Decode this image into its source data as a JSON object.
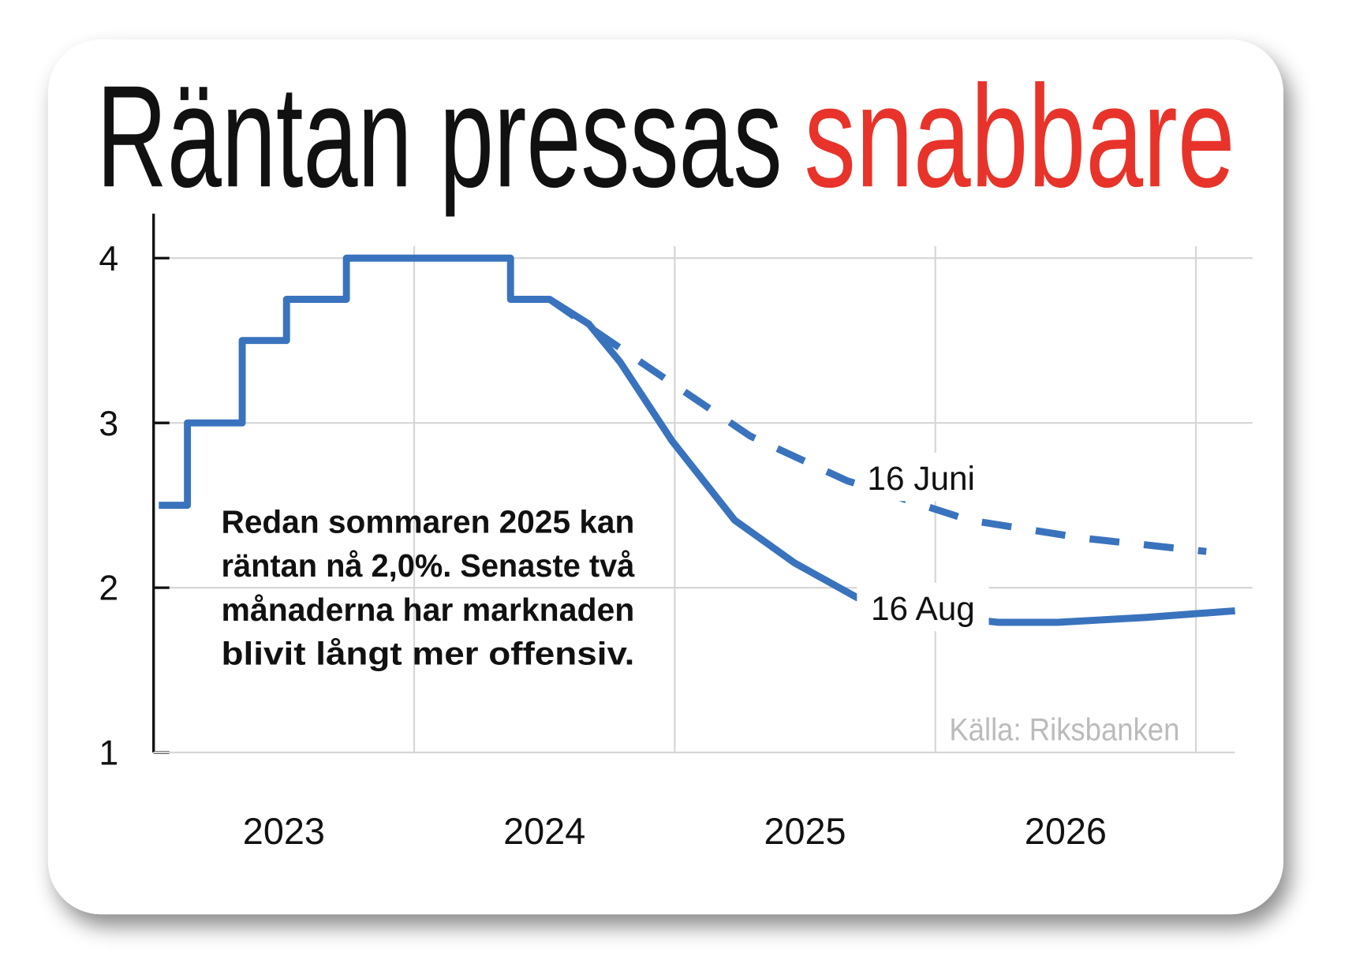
{
  "chart_data": {
    "type": "line",
    "title": "Räntan pressas",
    "title_highlight": "snabbare",
    "title_color": "#111111",
    "highlight_color": "#e8332a",
    "annotation": [
      "Redan sommaren 2025 kan",
      "räntan nå 2,0%. Senaste två",
      "månaderna har marknaden",
      "blivit långt mer offensiv."
    ],
    "source": "Källa: Riksbanken",
    "xlim": [
      2023,
      2027.15
    ],
    "ylim": [
      1,
      4.27
    ],
    "xticks": [
      2023,
      2024,
      2025,
      2026,
      {
        "value": 2027,
        "label": null
      }
    ],
    "yticks": [
      1,
      2,
      3,
      4
    ],
    "grid": true,
    "series": [
      {
        "name": "16 Aug",
        "color": "#3a73bd",
        "dash": false,
        "x": [
          2023.02,
          2023.13,
          2023.13,
          2023.34,
          2023.34,
          2023.51,
          2023.51,
          2023.74,
          2023.74,
          2024.37,
          2024.37,
          2024.52,
          2024.67,
          2024.79,
          2024.99,
          2025.23,
          2025.46,
          2025.7,
          2026.0,
          2026.24,
          2026.47,
          2026.81,
          2027.15
        ],
        "values": [
          2.5,
          2.5,
          3.0,
          3.0,
          3.5,
          3.5,
          3.75,
          3.75,
          4.0,
          4.0,
          3.75,
          3.75,
          3.6,
          3.37,
          2.89,
          2.41,
          2.15,
          1.94,
          1.83,
          1.79,
          1.79,
          1.82,
          1.86
        ]
      },
      {
        "name": "16 Juni",
        "color": "#3a73bd",
        "dash": true,
        "x": [
          2024.52,
          2024.72,
          2024.99,
          2025.29,
          2025.66,
          2026.13,
          2026.57,
          2027.04
        ],
        "values": [
          3.75,
          3.53,
          3.24,
          2.92,
          2.65,
          2.41,
          2.3,
          2.22
        ]
      }
    ]
  }
}
